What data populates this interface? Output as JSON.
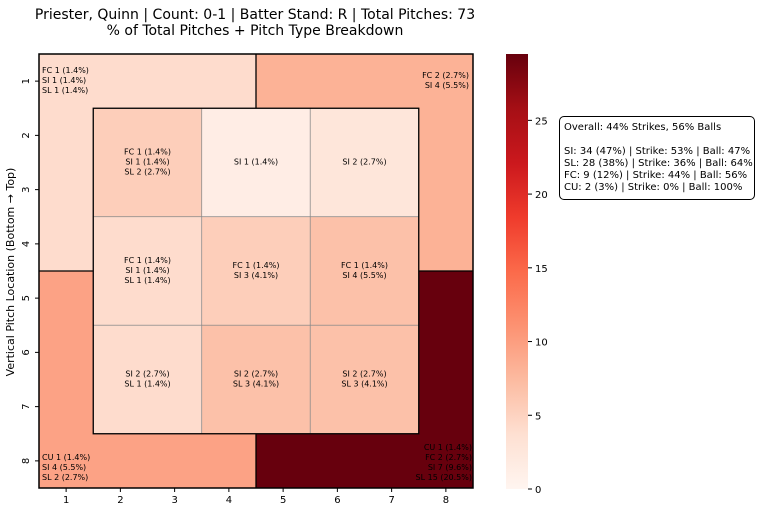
{
  "title": {
    "line1": "Priester, Quinn | Count: 0-1 | Batter Stand: R | Total Pitches: 73",
    "line2": "% of Total Pitches + Pitch Type Breakdown"
  },
  "summary": {
    "overall": "Overall: 44% Strikes, 56% Balls",
    "lines": [
      "SI: 34 (47%) | Strike: 53% | Ball: 47%",
      "SL: 28 (38%) | Strike: 36% | Ball: 64%",
      "FC: 9 (12%) | Strike: 44% | Ball: 56%",
      "CU: 2 (3%) | Strike: 0% | Ball: 100%"
    ]
  },
  "chart_data": {
    "type": "heatmap",
    "title": "Priester, Quinn | Count: 0-1 | Batter Stand: R | Total Pitches: 73 / % of Total Pitches + Pitch Type Breakdown",
    "xlabel": "",
    "ylabel": "Vertical Pitch Location (Bottom → Top)",
    "x_ticks": [
      "1",
      "2",
      "3",
      "4",
      "5",
      "6",
      "7",
      "8"
    ],
    "y_ticks": [
      "1",
      "2",
      "3",
      "4",
      "5",
      "6",
      "7",
      "8"
    ],
    "colorbar": {
      "min": 0,
      "max": 29.5,
      "ticks": [
        0,
        5,
        10,
        15,
        20,
        25
      ],
      "colormap": "Reds"
    },
    "colors": {
      "low": "#fff5f0",
      "high": "#67000d",
      "strike_zone_grid": "#8a8a8a"
    },
    "outer_zones": [
      {
        "id": "top-left",
        "value": 4.1,
        "lines": [
          "FC 1 (1.4%)",
          "SI 1 (1.4%)",
          "SL 1 (1.4%)"
        ]
      },
      {
        "id": "top-right",
        "value": 8.2,
        "lines": [
          "FC 2 (2.7%)",
          "SI 4 (5.5%)"
        ]
      },
      {
        "id": "bottom-left",
        "value": 9.6,
        "lines": [
          "CU 1 (1.4%)",
          "SI 4 (5.5%)",
          "SL 2 (2.7%)"
        ]
      },
      {
        "id": "bottom-right",
        "value": 34.2,
        "lines": [
          "CU 1 (1.4%)",
          "FC 2 (2.7%)",
          "SI 7 (9.6%)",
          "SL 15 (20.5%)"
        ]
      }
    ],
    "inner_zones": [
      {
        "row": 0,
        "col": 0,
        "value": 5.5,
        "lines": [
          "FC 1 (1.4%)",
          "SI 1 (1.4%)",
          "SL 2 (2.7%)"
        ]
      },
      {
        "row": 0,
        "col": 1,
        "value": 1.4,
        "lines": [
          "SI 1 (1.4%)"
        ]
      },
      {
        "row": 0,
        "col": 2,
        "value": 2.7,
        "lines": [
          "SI 2 (2.7%)"
        ]
      },
      {
        "row": 1,
        "col": 0,
        "value": 4.1,
        "lines": [
          "FC 1 (1.4%)",
          "SI 1 (1.4%)",
          "SL 1 (1.4%)"
        ]
      },
      {
        "row": 1,
        "col": 1,
        "value": 5.5,
        "lines": [
          "FC 1 (1.4%)",
          "SI 3 (4.1%)"
        ]
      },
      {
        "row": 1,
        "col": 2,
        "value": 6.8,
        "lines": [
          "FC 1 (1.4%)",
          "SI 4 (5.5%)"
        ]
      },
      {
        "row": 2,
        "col": 0,
        "value": 4.1,
        "lines": [
          "SI 2 (2.7%)",
          "SL 1 (1.4%)"
        ]
      },
      {
        "row": 2,
        "col": 1,
        "value": 6.8,
        "lines": [
          "SI 2 (2.7%)",
          "SL 3 (4.1%)"
        ]
      },
      {
        "row": 2,
        "col": 2,
        "value": 6.8,
        "lines": [
          "SI 2 (2.7%)",
          "SL 3 (4.1%)"
        ]
      }
    ]
  }
}
